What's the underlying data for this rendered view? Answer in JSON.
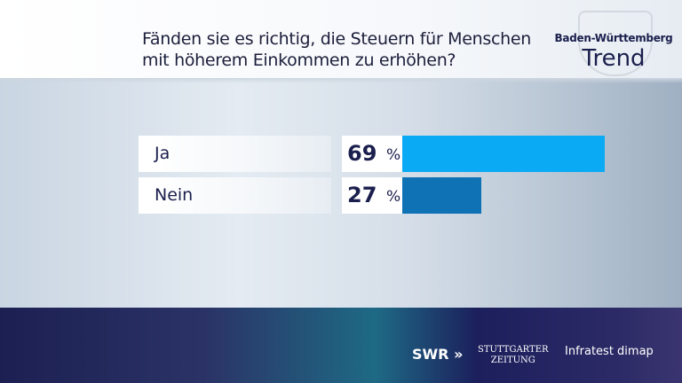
{
  "header": {
    "question": "Fänden sie es richtig, die Steuern für Menschen mit höherem Einkommen zu erhöhen?",
    "logo_line1": "Baden-Württemberg",
    "logo_line2": "Trend"
  },
  "chart_data": {
    "type": "bar",
    "orientation": "horizontal",
    "title": "Fänden sie es richtig, die Steuern für Menschen mit höherem Einkommen zu erhöhen?",
    "categories": [
      "Ja",
      "Nein"
    ],
    "values": [
      69,
      27
    ],
    "unit": "%",
    "colors": [
      "#0aaaf5",
      "#0e72b5"
    ]
  },
  "footer": {
    "swr": "SWR",
    "sz_line1": "STUTTGARTER",
    "sz_line2": "ZEITUNG",
    "infratest": "Infratest dimap"
  }
}
